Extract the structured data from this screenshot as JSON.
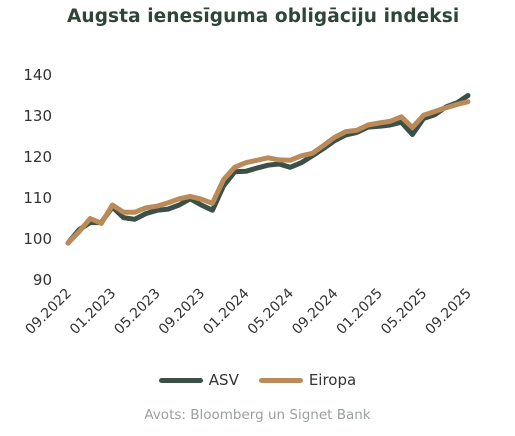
{
  "title": "Augsta ienesīguma obligāciju indeksi",
  "source": "Avots: Bloomberg un Signet Bank",
  "colors": {
    "asv": "#3b5047",
    "eiropa": "#bb8a59",
    "axis_text": "#333333",
    "title": "#2e4638"
  },
  "chart_data": {
    "type": "line",
    "title": "Augsta ienesīguma obligāciju indeksi",
    "xlabel": "",
    "ylabel": "",
    "ylim": [
      90,
      140
    ],
    "yticks": [
      90,
      100,
      110,
      120,
      130,
      140
    ],
    "xtick_labels": [
      "09.2022",
      "01.2023",
      "05.2023",
      "09.2023",
      "01.2024",
      "05.2024",
      "09.2024",
      "01.2025",
      "05.2025",
      "09.2025"
    ],
    "grid": false,
    "legend": "bottom",
    "x": [
      "09.2022",
      "10.2022",
      "11.2022",
      "12.2022",
      "01.2023",
      "02.2023",
      "03.2023",
      "04.2023",
      "05.2023",
      "06.2023",
      "07.2023",
      "08.2023",
      "09.2023",
      "10.2023",
      "11.2023",
      "12.2023",
      "01.2024",
      "02.2024",
      "03.2024",
      "04.2024",
      "05.2024",
      "06.2024",
      "07.2024",
      "08.2024",
      "09.2024",
      "10.2024",
      "11.2024",
      "12.2024",
      "01.2025",
      "02.2025",
      "03.2025",
      "04.2025",
      "05.2025",
      "06.2025",
      "07.2025",
      "08.2025",
      "09.2025"
    ],
    "series": [
      {
        "name": "ASV",
        "values": [
          99.0,
          102.3,
          104.0,
          104.0,
          107.8,
          105.2,
          104.8,
          106.2,
          107.0,
          107.3,
          108.3,
          109.8,
          108.3,
          107.0,
          113.0,
          116.4,
          116.5,
          117.3,
          118.0,
          118.3,
          117.5,
          118.6,
          120.3,
          122.1,
          124.0,
          125.4,
          126.0,
          127.3,
          127.5,
          127.8,
          128.5,
          125.5,
          129.4,
          130.3,
          132.2,
          133.2,
          135.0
        ]
      },
      {
        "name": "Eiropa",
        "values": [
          99.0,
          101.8,
          105.0,
          103.8,
          108.3,
          106.5,
          106.5,
          107.6,
          108.0,
          108.8,
          109.8,
          110.4,
          109.7,
          108.7,
          114.5,
          117.5,
          118.6,
          119.2,
          119.8,
          119.3,
          119.2,
          120.3,
          120.9,
          122.8,
          124.8,
          126.2,
          126.5,
          127.8,
          128.3,
          128.7,
          129.8,
          127.2,
          130.2,
          131.1,
          132.0,
          132.8,
          133.5
        ]
      }
    ]
  }
}
